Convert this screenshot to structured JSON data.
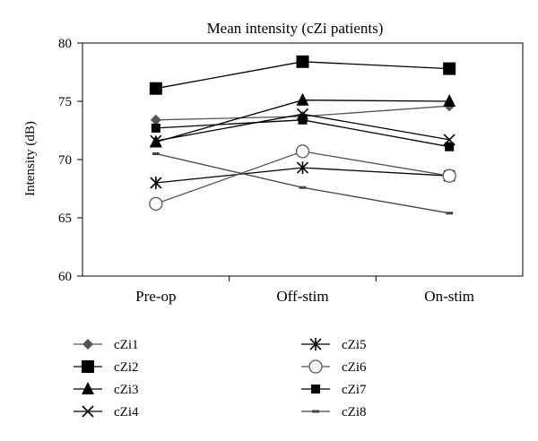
{
  "chart_data": {
    "type": "line",
    "title": "Mean intensity (cZi patients)",
    "xlabel": "",
    "ylabel": "Intensity (dB)",
    "categories": [
      "Pre-op",
      "Off-stim",
      "On-stim"
    ],
    "ylim": [
      60,
      80
    ],
    "yticks": [
      "60",
      "65",
      "70",
      "75",
      "80"
    ],
    "grid": false,
    "legend_position": "bottom",
    "series": [
      {
        "name": "cZi1",
        "marker": "diamond",
        "color": "#555555",
        "values": [
          73.4,
          73.7,
          74.6
        ]
      },
      {
        "name": "cZi2",
        "marker": "square-large",
        "color": "#000000",
        "values": [
          76.1,
          78.4,
          77.8
        ]
      },
      {
        "name": "cZi3",
        "marker": "triangle",
        "color": "#000000",
        "values": [
          71.5,
          75.1,
          75.0
        ]
      },
      {
        "name": "cZi4",
        "marker": "x",
        "color": "#000000",
        "values": [
          71.6,
          73.9,
          71.7
        ]
      },
      {
        "name": "cZi5",
        "marker": "asterisk",
        "color": "#000000",
        "values": [
          68.0,
          69.3,
          68.6
        ]
      },
      {
        "name": "cZi6",
        "marker": "circle",
        "color": "#555555",
        "values": [
          66.2,
          70.7,
          68.6
        ]
      },
      {
        "name": "cZi7",
        "marker": "square-small",
        "color": "#000000",
        "values": [
          72.7,
          73.4,
          71.1
        ]
      },
      {
        "name": "cZi8",
        "marker": "dash",
        "color": "#444444",
        "values": [
          70.5,
          67.6,
          65.4
        ]
      }
    ]
  }
}
